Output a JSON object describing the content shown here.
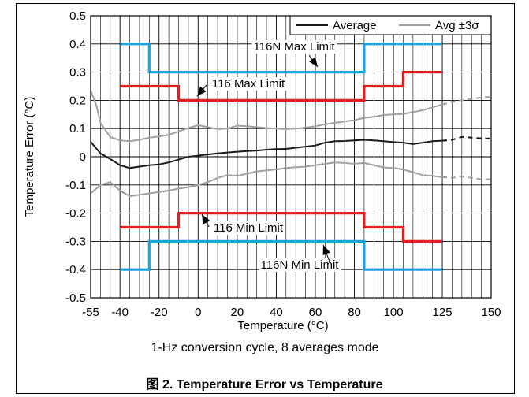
{
  "chart_data": {
    "type": "line",
    "xlabel": "Temperature (°C)",
    "ylabel": "Temperature Error (°C)",
    "subtitle": "1-Hz conversion cycle, 8 averages mode",
    "xlim": [
      -55,
      150
    ],
    "ylim": [
      -0.5,
      0.5
    ],
    "x_ticks": [
      -55,
      -40,
      -20,
      0,
      20,
      40,
      60,
      80,
      100,
      125,
      150
    ],
    "x_tick_labels": [
      "-55",
      "-40",
      "-20",
      "0",
      "20",
      "40",
      "60",
      "80",
      "100",
      "125",
      "150"
    ],
    "y_ticks": [
      -0.5,
      -0.4,
      -0.3,
      -0.2,
      -0.1,
      0,
      0.1,
      0.2,
      0.3,
      0.4,
      0.5
    ],
    "y_tick_labels": [
      "-0.5",
      "-0.4",
      "-0.3",
      "-0.2",
      "-0.1",
      "0",
      "0.1",
      "0.2",
      "0.3",
      "0.4",
      "0.5"
    ],
    "grid": true,
    "legend_position": "top-right",
    "legend": [
      {
        "label": "Average",
        "color": "#1a1a1a"
      },
      {
        "label": "Avg ±3σ",
        "color": "#a0a0a0"
      }
    ],
    "series": [
      {
        "name": "Average",
        "color": "#1a1a1a",
        "style": "solid",
        "x": [
          -55,
          -50,
          -45,
          -40,
          -35,
          -30,
          -25,
          -20,
          -15,
          -10,
          -5,
          0,
          5,
          10,
          15,
          20,
          25,
          30,
          35,
          40,
          45,
          50,
          55,
          60,
          65,
          70,
          75,
          80,
          85,
          90,
          95,
          100,
          105,
          110,
          115,
          120,
          125
        ],
        "y": [
          0.053,
          0.012,
          -0.008,
          -0.03,
          -0.04,
          -0.035,
          -0.03,
          -0.027,
          -0.02,
          -0.01,
          0.0,
          0.004,
          0.008,
          0.012,
          0.015,
          0.018,
          0.02,
          0.022,
          0.025,
          0.027,
          0.028,
          0.032,
          0.036,
          0.04,
          0.05,
          0.055,
          0.056,
          0.058,
          0.06,
          0.058,
          0.055,
          0.052,
          0.05,
          0.045,
          0.05,
          0.055,
          0.057
        ]
      },
      {
        "name": "Average (extrapolated)",
        "color": "#1a1a1a",
        "style": "dashed",
        "x": [
          125,
          130,
          135,
          140,
          145,
          150
        ],
        "y": [
          0.057,
          0.06,
          0.07,
          0.068,
          0.065,
          0.065
        ]
      },
      {
        "name": "Avg ±3σ (upper)",
        "color": "#a0a0a0",
        "style": "solid",
        "x": [
          -55,
          -52,
          -50,
          -45,
          -40,
          -35,
          -30,
          -25,
          -20,
          -15,
          -10,
          -5,
          0,
          5,
          10,
          15,
          20,
          25,
          30,
          35,
          40,
          45,
          50,
          55,
          60,
          65,
          70,
          75,
          80,
          85,
          90,
          95,
          100,
          105,
          110,
          115,
          120,
          125
        ],
        "y": [
          0.235,
          0.18,
          0.12,
          0.07,
          0.058,
          0.055,
          0.06,
          0.068,
          0.072,
          0.078,
          0.09,
          0.102,
          0.112,
          0.105,
          0.098,
          0.1,
          0.11,
          0.108,
          0.105,
          0.102,
          0.1,
          0.098,
          0.1,
          0.103,
          0.108,
          0.115,
          0.12,
          0.125,
          0.13,
          0.138,
          0.142,
          0.148,
          0.15,
          0.152,
          0.158,
          0.165,
          0.175,
          0.185
        ]
      },
      {
        "name": "Avg ±3σ upper (extrapolated)",
        "color": "#a0a0a0",
        "style": "dashed",
        "x": [
          125,
          130,
          135,
          140,
          145,
          150
        ],
        "y": [
          0.185,
          0.195,
          0.2,
          0.205,
          0.21,
          0.213
        ]
      },
      {
        "name": "Avg ±3σ (lower)",
        "color": "#a0a0a0",
        "style": "solid",
        "x": [
          -55,
          -50,
          -45,
          -40,
          -35,
          -30,
          -25,
          -20,
          -15,
          -10,
          -5,
          0,
          5,
          10,
          15,
          20,
          25,
          30,
          35,
          40,
          45,
          50,
          55,
          60,
          65,
          70,
          75,
          80,
          85,
          90,
          95,
          100,
          105,
          110,
          115,
          120,
          125
        ],
        "y": [
          -0.13,
          -0.1,
          -0.09,
          -0.12,
          -0.14,
          -0.135,
          -0.13,
          -0.125,
          -0.12,
          -0.113,
          -0.108,
          -0.1,
          -0.09,
          -0.075,
          -0.065,
          -0.068,
          -0.06,
          -0.052,
          -0.048,
          -0.045,
          -0.04,
          -0.037,
          -0.035,
          -0.03,
          -0.025,
          -0.02,
          -0.022,
          -0.025,
          -0.022,
          -0.03,
          -0.038,
          -0.04,
          -0.045,
          -0.055,
          -0.065,
          -0.068,
          -0.072
        ]
      },
      {
        "name": "Avg ±3σ lower (extrapolated)",
        "color": "#a0a0a0",
        "style": "dashed",
        "x": [
          125,
          130,
          135,
          140,
          145,
          150
        ],
        "y": [
          -0.072,
          -0.075,
          -0.07,
          -0.075,
          -0.08,
          -0.08
        ]
      },
      {
        "name": "116N Max Limit",
        "color": "#1aa3e0",
        "style": "step",
        "x": [
          -40,
          -25,
          -25,
          85,
          85,
          125
        ],
        "y": [
          0.4,
          0.4,
          0.3,
          0.3,
          0.4,
          0.4
        ]
      },
      {
        "name": "116 Max Limit",
        "color": "#e02020",
        "style": "step",
        "x": [
          -40,
          -10,
          -10,
          85,
          85,
          105,
          105,
          125
        ],
        "y": [
          0.25,
          0.25,
          0.2,
          0.2,
          0.25,
          0.25,
          0.3,
          0.3
        ]
      },
      {
        "name": "116 Min Limit",
        "color": "#e02020",
        "style": "step",
        "x": [
          -40,
          -10,
          -10,
          85,
          85,
          105,
          105,
          125
        ],
        "y": [
          -0.25,
          -0.25,
          -0.2,
          -0.2,
          -0.25,
          -0.25,
          -0.3,
          -0.3
        ]
      },
      {
        "name": "116N Min Limit",
        "color": "#1aa3e0",
        "style": "step",
        "x": [
          -40,
          -25,
          -25,
          85,
          85,
          125
        ],
        "y": [
          -0.4,
          -0.4,
          -0.3,
          -0.3,
          -0.4,
          -0.4
        ]
      }
    ],
    "annotations": [
      {
        "text": "116N Max Limit",
        "arrow_to": [
          70,
          0.3
        ]
      },
      {
        "text": "116 Max Limit",
        "arrow_to": [
          -10,
          0.2
        ]
      },
      {
        "text": "116 Min Limit",
        "arrow_to": [
          -10,
          -0.2
        ]
      },
      {
        "text": "116N Min Limit",
        "arrow_to": [
          70,
          -0.3
        ]
      }
    ]
  },
  "caption": "图 2. Temperature Error vs Temperature"
}
